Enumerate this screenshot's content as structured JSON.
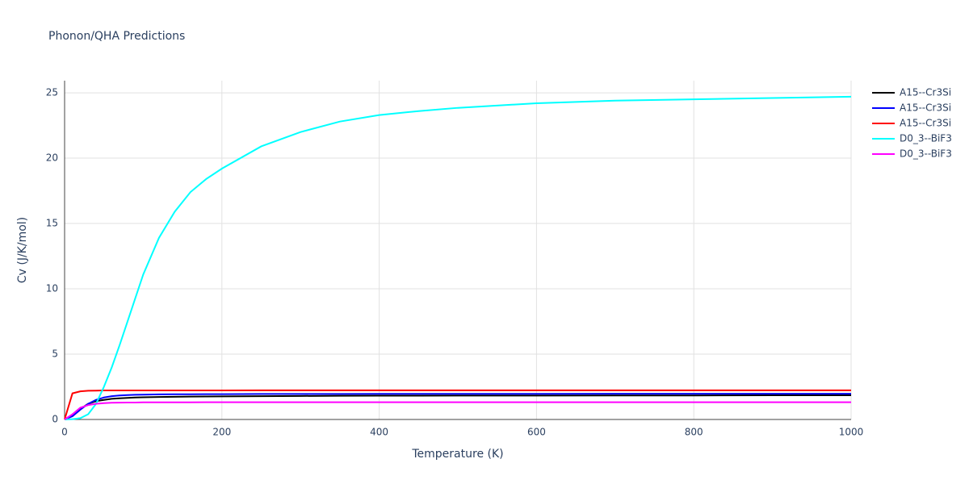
{
  "chart_data": {
    "type": "line",
    "title": "Phonon/QHA Predictions",
    "x_label": "Temperature (K)",
    "y_label": "Cv (J/K/mol)",
    "x": [
      0,
      10,
      20,
      30,
      40,
      50,
      60,
      70,
      80,
      90,
      100,
      120,
      140,
      160,
      180,
      200,
      250,
      300,
      350,
      400,
      450,
      500,
      600,
      700,
      800,
      900,
      1000
    ],
    "series": [
      {
        "name": "A15--Cr3Si",
        "color": "#000000",
        "values": [
          0,
          0.3,
          0.8,
          1.2,
          1.4,
          1.5,
          1.58,
          1.62,
          1.65,
          1.68,
          1.7,
          1.72,
          1.74,
          1.75,
          1.76,
          1.77,
          1.78,
          1.8,
          1.81,
          1.82,
          1.82,
          1.83,
          1.83,
          1.84,
          1.84,
          1.85,
          1.85
        ]
      },
      {
        "name": "A15--Cr3Si",
        "color": "#0000ff",
        "values": [
          0,
          0.25,
          0.75,
          1.2,
          1.5,
          1.68,
          1.78,
          1.84,
          1.87,
          1.89,
          1.9,
          1.92,
          1.93,
          1.93,
          1.94,
          1.94,
          1.95,
          1.95,
          1.95,
          1.96,
          1.96,
          1.96,
          1.96,
          1.97,
          1.97,
          1.97,
          1.97
        ]
      },
      {
        "name": "A15--Cr3Si",
        "color": "#ff0000",
        "values": [
          0,
          2.0,
          2.15,
          2.2,
          2.21,
          2.22,
          2.22,
          2.22,
          2.22,
          2.22,
          2.22,
          2.22,
          2.22,
          2.22,
          2.22,
          2.22,
          2.23,
          2.23,
          2.23,
          2.23,
          2.23,
          2.23,
          2.23,
          2.23,
          2.23,
          2.23,
          2.23
        ]
      },
      {
        "name": "D0_3--BiF3",
        "color": "#00ffff",
        "values": [
          0,
          0.02,
          0.1,
          0.4,
          1.2,
          2.5,
          4.0,
          5.7,
          7.5,
          9.3,
          11.1,
          13.9,
          15.9,
          17.4,
          18.4,
          19.2,
          20.9,
          22.0,
          22.8,
          23.3,
          23.6,
          23.85,
          24.2,
          24.4,
          24.5,
          24.6,
          24.7
        ]
      },
      {
        "name": "D0_3--BiF3",
        "color": "#ff00ff",
        "values": [
          0,
          0.4,
          0.9,
          1.1,
          1.2,
          1.25,
          1.28,
          1.29,
          1.3,
          1.3,
          1.31,
          1.31,
          1.31,
          1.31,
          1.32,
          1.32,
          1.32,
          1.32,
          1.32,
          1.32,
          1.32,
          1.32,
          1.32,
          1.32,
          1.32,
          1.32,
          1.32
        ]
      }
    ],
    "xlim": [
      0,
      1000
    ],
    "xticks": [
      0,
      200,
      400,
      600,
      800,
      1000
    ],
    "ylim": [
      0,
      25.93
    ],
    "yticks": [
      0,
      5,
      10,
      15,
      20,
      25
    ],
    "grid": true
  }
}
